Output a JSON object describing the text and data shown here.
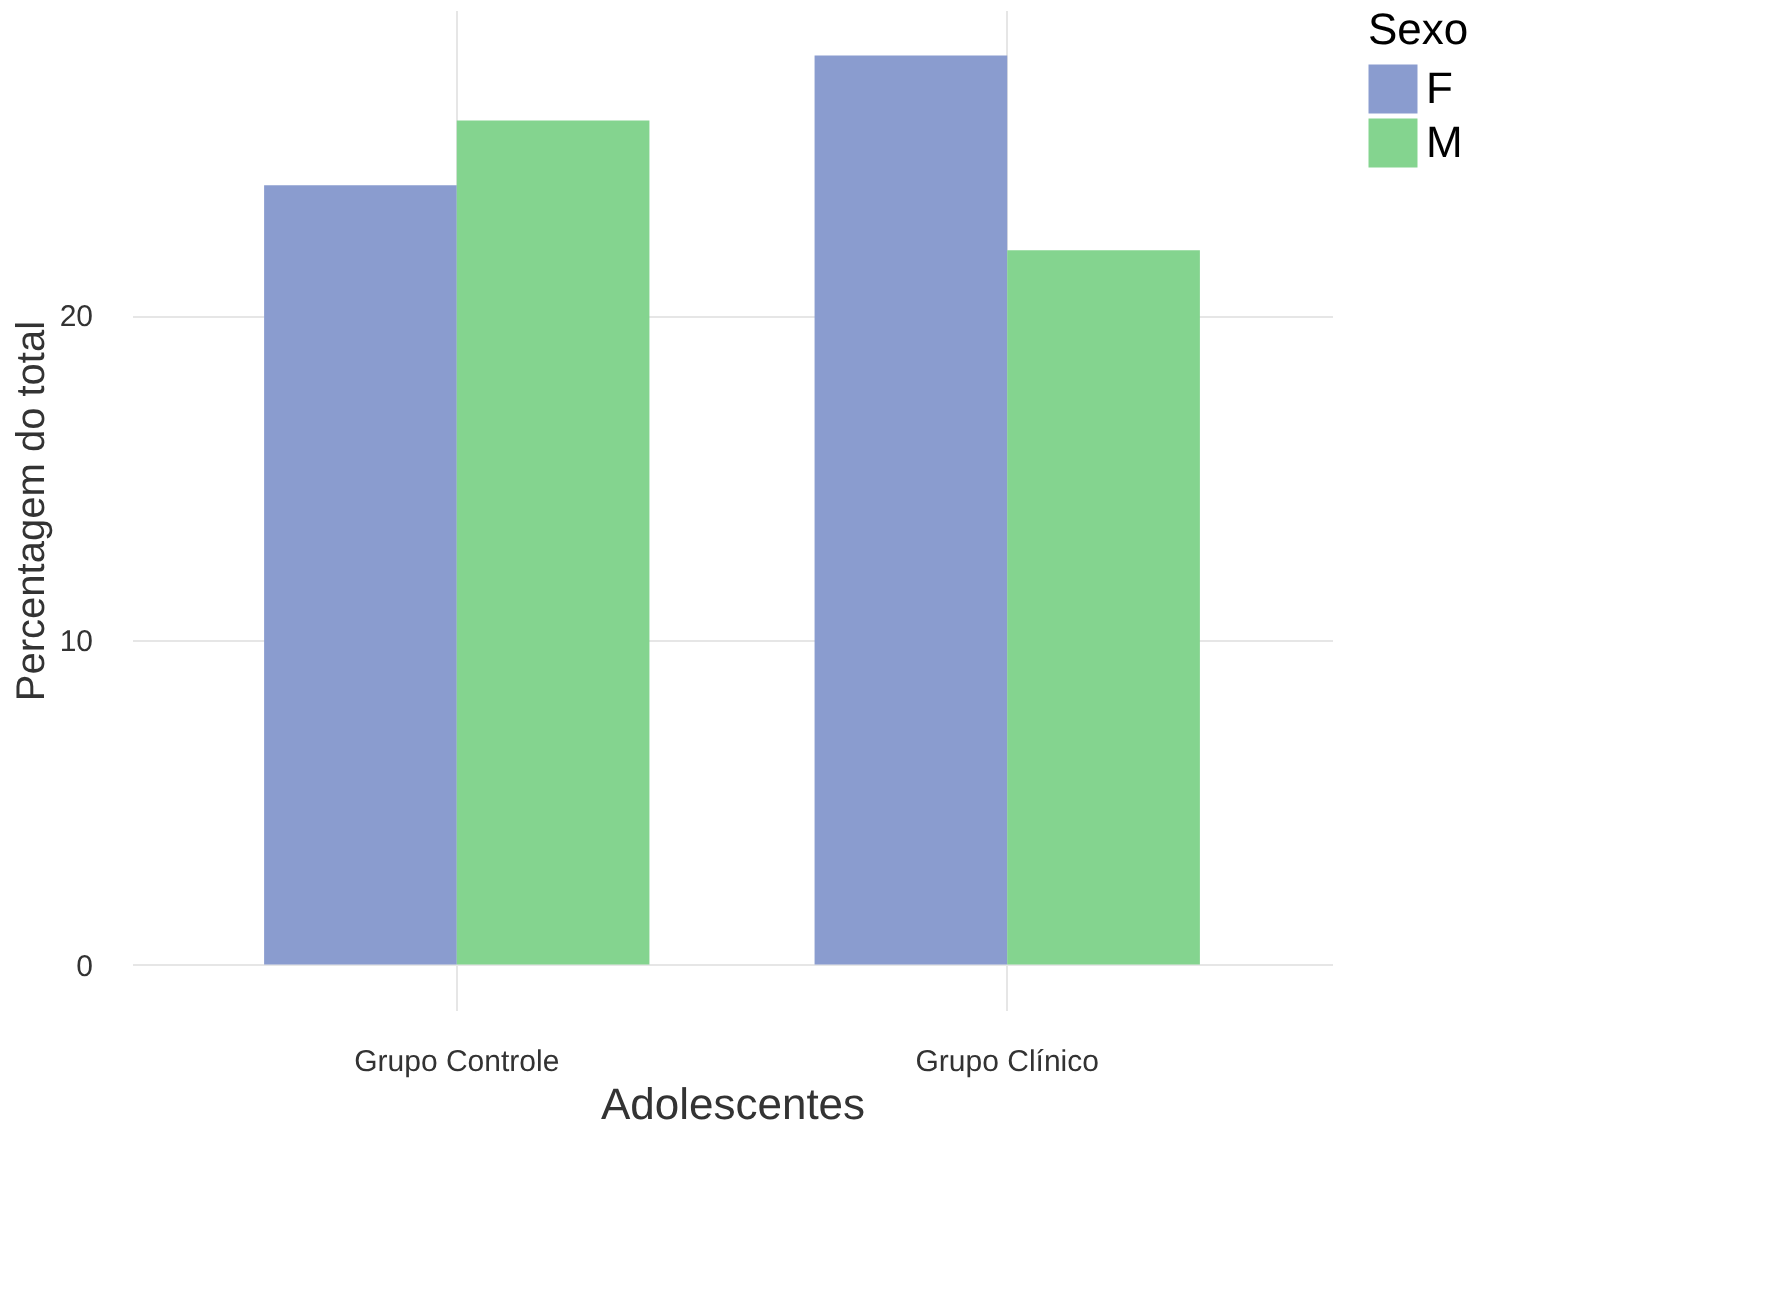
{
  "chart_data": {
    "type": "bar",
    "xlabel": "Adolescentes",
    "ylabel": "Percentagem do total",
    "legend_title": "Sexo",
    "categories": [
      "Grupo Controle",
      "Grupo Clínico"
    ],
    "series": [
      {
        "name": "F",
        "color": "#8a9ccf",
        "values": [
          24,
          28
        ]
      },
      {
        "name": "M",
        "color": "#84d48f",
        "values": [
          26,
          22
        ]
      }
    ],
    "ylim": [
      -1.4,
      29.4
    ],
    "yticks": [
      0,
      10,
      20
    ],
    "grid": true,
    "legend": "right"
  }
}
